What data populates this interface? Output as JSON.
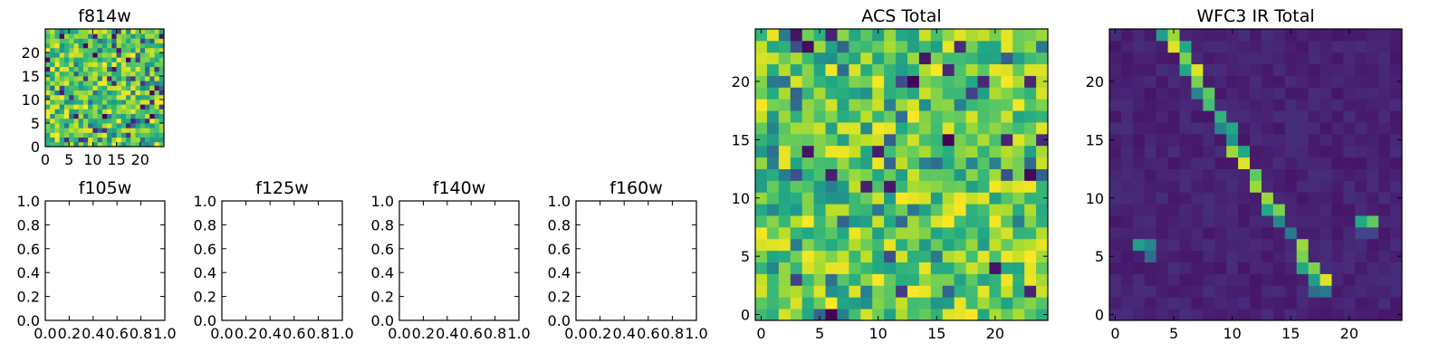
{
  "figure": {
    "background": "#ffffff"
  },
  "colormap": {
    "name": "viridis",
    "min_color": "#440154",
    "max_color": "#fde725"
  },
  "chart_data": [
    {
      "id": "f814w",
      "type": "heatmap",
      "title": "f814w",
      "grid_size": [
        25,
        25
      ],
      "value_range": [
        0,
        1
      ],
      "value_note": "uniform-noise-like field, mostly mid-to-high values",
      "xticks": [
        0,
        5,
        10,
        15,
        20
      ],
      "yticks": [
        0,
        5,
        10,
        15,
        20
      ],
      "xlim": [
        0,
        25
      ],
      "ylim": [
        0,
        25
      ]
    },
    {
      "id": "f105w",
      "type": "empty",
      "title": "f105w",
      "xticks": [
        "0.0",
        "0.2",
        "0.4",
        "0.6",
        "0.8",
        "1.0"
      ],
      "yticks": [
        "0.0",
        "0.2",
        "0.4",
        "0.6",
        "0.8",
        "1.0"
      ],
      "xlim": [
        0,
        1
      ],
      "ylim": [
        0,
        1
      ]
    },
    {
      "id": "f125w",
      "type": "empty",
      "title": "f125w",
      "xticks": [
        "0.0",
        "0.2",
        "0.4",
        "0.6",
        "0.8",
        "1.0"
      ],
      "yticks": [
        "0.0",
        "0.2",
        "0.4",
        "0.6",
        "0.8",
        "1.0"
      ],
      "xlim": [
        0,
        1
      ],
      "ylim": [
        0,
        1
      ]
    },
    {
      "id": "f140w",
      "type": "empty",
      "title": "f140w",
      "xticks": [
        "0.0",
        "0.2",
        "0.4",
        "0.6",
        "0.8",
        "1.0"
      ],
      "yticks": [
        "0.0",
        "0.2",
        "0.4",
        "0.6",
        "0.8",
        "1.0"
      ],
      "xlim": [
        0,
        1
      ],
      "ylim": [
        0,
        1
      ]
    },
    {
      "id": "f160w",
      "type": "empty",
      "title": "f160w",
      "xticks": [
        "0.0",
        "0.2",
        "0.4",
        "0.6",
        "0.8",
        "1.0"
      ],
      "yticks": [
        "0.0",
        "0.2",
        "0.4",
        "0.6",
        "0.8",
        "1.0"
      ],
      "xlim": [
        0,
        1
      ],
      "ylim": [
        0,
        1
      ]
    },
    {
      "id": "acs_total",
      "type": "heatmap",
      "title": "ACS Total",
      "grid_size": [
        25,
        25
      ],
      "value_range": [
        0,
        1
      ],
      "value_note": "noise-like field dominated by green-yellow values with scattered dark pixels",
      "xticks": [
        0,
        5,
        10,
        15,
        20
      ],
      "yticks": [
        0,
        5,
        10,
        15,
        20
      ],
      "xlim": [
        -0.5,
        24.5
      ],
      "ylim": [
        -0.5,
        24.5
      ]
    },
    {
      "id": "wfc3_ir_total",
      "type": "heatmap",
      "title": "WFC3 IR Total",
      "grid_size": [
        25,
        25
      ],
      "value_range": [
        0,
        1
      ],
      "background_level": 0.06,
      "xticks": [
        0,
        5,
        10,
        15,
        20
      ],
      "yticks": [
        0,
        5,
        10,
        15,
        20
      ],
      "xlim": [
        -0.5,
        24.5
      ],
      "ylim": [
        -0.5,
        24.5
      ],
      "bright_cells": [
        {
          "x": 4,
          "y": 24,
          "v": 0.55
        },
        {
          "x": 5,
          "y": 24,
          "v": 0.85
        },
        {
          "x": 5,
          "y": 23,
          "v": 0.95
        },
        {
          "x": 6,
          "y": 23,
          "v": 0.6
        },
        {
          "x": 6,
          "y": 22,
          "v": 0.8
        },
        {
          "x": 6,
          "y": 21,
          "v": 0.6
        },
        {
          "x": 7,
          "y": 21,
          "v": 0.95
        },
        {
          "x": 7,
          "y": 20,
          "v": 0.8
        },
        {
          "x": 7,
          "y": 19,
          "v": 0.45
        },
        {
          "x": 8,
          "y": 19,
          "v": 0.75
        },
        {
          "x": 8,
          "y": 18,
          "v": 0.7
        },
        {
          "x": 9,
          "y": 17,
          "v": 0.65
        },
        {
          "x": 9,
          "y": 16,
          "v": 0.45
        },
        {
          "x": 10,
          "y": 16,
          "v": 0.6
        },
        {
          "x": 10,
          "y": 15,
          "v": 0.5
        },
        {
          "x": 10,
          "y": 14,
          "v": 0.85
        },
        {
          "x": 11,
          "y": 14,
          "v": 0.6
        },
        {
          "x": 11,
          "y": 13,
          "v": 0.95
        },
        {
          "x": 12,
          "y": 12,
          "v": 0.75
        },
        {
          "x": 12,
          "y": 11,
          "v": 0.85
        },
        {
          "x": 13,
          "y": 10,
          "v": 0.85
        },
        {
          "x": 13,
          "y": 9,
          "v": 0.6
        },
        {
          "x": 14,
          "y": 9,
          "v": 0.8
        },
        {
          "x": 14,
          "y": 8,
          "v": 0.45
        },
        {
          "x": 15,
          "y": 7,
          "v": 0.4
        },
        {
          "x": 16,
          "y": 6,
          "v": 0.85
        },
        {
          "x": 16,
          "y": 5,
          "v": 0.8
        },
        {
          "x": 16,
          "y": 4,
          "v": 0.6
        },
        {
          "x": 17,
          "y": 4,
          "v": 0.8
        },
        {
          "x": 17,
          "y": 3,
          "v": 0.55
        },
        {
          "x": 18,
          "y": 3,
          "v": 0.95
        },
        {
          "x": 17,
          "y": 2,
          "v": 0.35
        },
        {
          "x": 18,
          "y": 2,
          "v": 0.4
        },
        {
          "x": 2,
          "y": 6,
          "v": 0.55
        },
        {
          "x": 3,
          "y": 6,
          "v": 0.45
        },
        {
          "x": 3,
          "y": 5,
          "v": 0.35
        },
        {
          "x": 21,
          "y": 8,
          "v": 0.6
        },
        {
          "x": 22,
          "y": 8,
          "v": 0.75
        },
        {
          "x": 21,
          "y": 7,
          "v": 0.2
        },
        {
          "x": 22,
          "y": 7,
          "v": 0.2
        }
      ]
    }
  ]
}
